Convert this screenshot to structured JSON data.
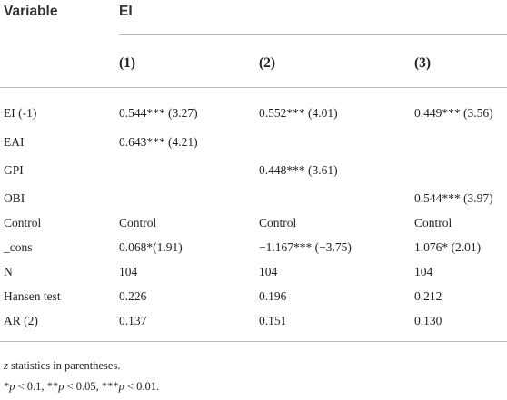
{
  "table": {
    "header": {
      "variable_label": "Variable",
      "group_label": "EI",
      "columns": [
        "(1)",
        "(2)",
        "(3)"
      ]
    },
    "rows": [
      {
        "label": "EI (-1)",
        "cells": [
          "0.544*** (3.27)",
          "0.552*** (4.01)",
          "0.449*** (3.56)"
        ]
      },
      {
        "label": "EAI",
        "cells": [
          "0.643*** (4.21)",
          "",
          ""
        ]
      },
      {
        "label": "GPI",
        "cells": [
          "",
          "0.448*** (3.61)",
          ""
        ]
      },
      {
        "label": "OBI",
        "cells": [
          "",
          "",
          "0.544*** (3.97)"
        ]
      },
      {
        "label": "Control",
        "cells": [
          "Control",
          "Control",
          "Control"
        ]
      },
      {
        "label": "_cons",
        "cells": [
          "0.068*(1.91)",
          "−1.167*** (−3.75)",
          "1.076* (2.01)"
        ]
      },
      {
        "label": "N",
        "cells": [
          "104",
          "104",
          "104"
        ]
      },
      {
        "label": "Hansen test",
        "cells": [
          "0.226",
          "0.196",
          "0.212"
        ]
      },
      {
        "label": "AR (2)",
        "cells": [
          "0.137",
          "0.151",
          "0.130"
        ]
      }
    ],
    "notes": {
      "line1_var": "z",
      "line1_text": " statistics in parentheses.",
      "line2_sig1": "*",
      "line2_p1": "p",
      "line2_t1": " < 0.1, ",
      "line2_sig2": "**",
      "line2_p2": "p",
      "line2_t2": " < 0.05, ",
      "line2_sig3": "***",
      "line2_p3": "p",
      "line2_t3": " < 0.01."
    }
  }
}
